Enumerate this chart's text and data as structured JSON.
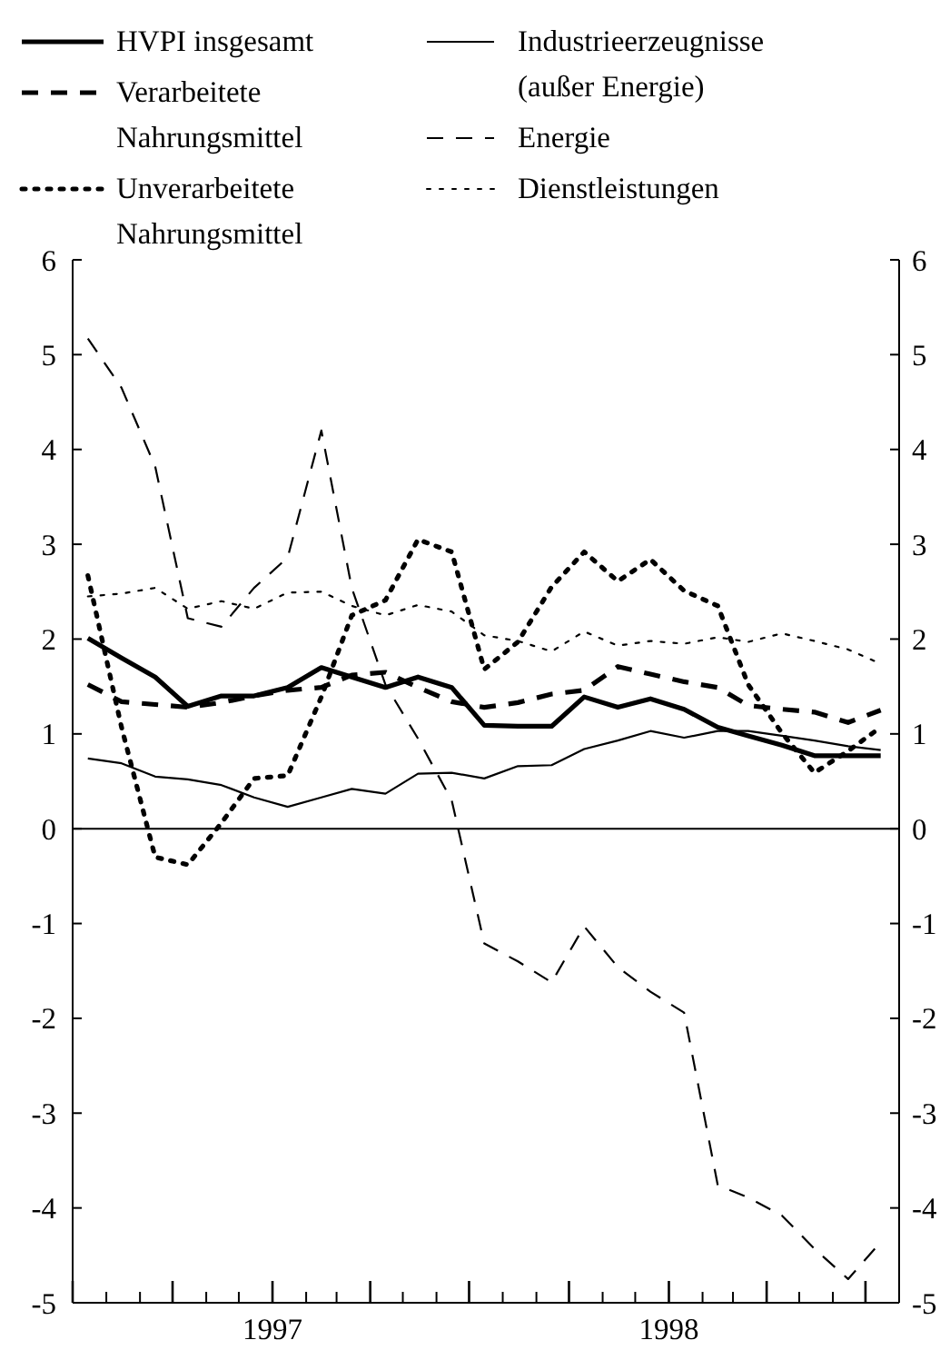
{
  "chart_data": {
    "type": "line",
    "x": [
      "1996-07-15",
      "1996-08-15",
      "1996-09-15",
      "1996-10-15",
      "1996-11-15",
      "1996-12-15",
      "1997-01-15",
      "1997-02-15",
      "1997-03-15",
      "1997-04-15",
      "1997-05-15",
      "1997-06-15",
      "1997-07-15",
      "1997-08-15",
      "1997-09-15",
      "1997-10-15",
      "1997-11-15",
      "1997-12-15",
      "1998-01-15",
      "1998-02-15",
      "1998-03-15",
      "1998-04-15",
      "1998-05-15",
      "1998-06-15",
      "1998-07-15"
    ],
    "series": [
      {
        "name": "HVPI insgesamt",
        "color": "#000000",
        "line_style": "solid",
        "values": [
          2.01,
          1.8,
          1.6,
          1.29,
          1.4,
          1.4,
          1.49,
          1.7,
          1.6,
          1.49,
          1.6,
          1.49,
          1.09,
          1.08,
          1.08,
          1.39,
          1.28,
          1.37,
          1.26,
          1.07,
          0.98,
          0.88,
          0.77,
          0.77,
          0.77
        ]
      },
      {
        "name": "Verarbeitete Nahrungsmittel",
        "color": "#000000",
        "line_style": "dashed",
        "values": [
          1.52,
          1.34,
          1.31,
          1.28,
          1.33,
          1.4,
          1.46,
          1.49,
          1.62,
          1.65,
          1.49,
          1.34,
          1.28,
          1.33,
          1.42,
          1.46,
          1.71,
          1.63,
          1.55,
          1.49,
          1.3,
          1.26,
          1.23,
          1.12,
          1.25
        ]
      },
      {
        "name": "Unverarbeitete Nahrungsmittel",
        "color": "#000000",
        "line_style": "dotted",
        "values": [
          2.67,
          1.07,
          -0.3,
          -0.38,
          0.06,
          0.53,
          0.56,
          1.39,
          2.25,
          2.41,
          3.05,
          2.92,
          1.68,
          1.97,
          2.55,
          2.92,
          2.61,
          2.84,
          2.51,
          2.35,
          1.52,
          1.01,
          0.59,
          0.82,
          1.07
        ]
      },
      {
        "name": "Industrieerzeugnisse (außer Energie)",
        "color": "#000000",
        "line_style": "solid",
        "values": [
          0.74,
          0.69,
          0.55,
          0.52,
          0.46,
          0.33,
          0.23,
          0.33,
          0.42,
          0.37,
          0.58,
          0.59,
          0.53,
          0.66,
          0.67,
          0.84,
          0.93,
          1.03,
          0.96,
          1.03,
          1.03,
          0.98,
          0.93,
          0.87,
          0.83
        ]
      },
      {
        "name": "Energie",
        "color": "#000000",
        "line_style": "dashed",
        "values": [
          5.17,
          4.65,
          3.82,
          2.22,
          2.13,
          2.54,
          2.86,
          4.2,
          2.54,
          1.52,
          0.95,
          0.3,
          -1.21,
          -1.4,
          -1.62,
          -1.03,
          -1.46,
          -1.72,
          -1.94,
          -3.76,
          -3.89,
          -4.08,
          -4.43,
          -4.75,
          -4.36
        ]
      },
      {
        "name": "Dienstleistungen",
        "color": "#000000",
        "line_style": "dotted",
        "values": [
          2.45,
          2.48,
          2.54,
          2.32,
          2.4,
          2.32,
          2.49,
          2.5,
          2.35,
          2.25,
          2.36,
          2.29,
          2.04,
          1.98,
          1.87,
          2.08,
          1.93,
          1.98,
          1.95,
          2.02,
          1.97,
          2.06,
          1.98,
          1.89,
          1.74
        ]
      }
    ],
    "xlim": [
      "1996-07-01",
      "1998-08-01"
    ],
    "xticks": [
      {
        "value": "1996-07-01",
        "label": null
      },
      {
        "value": "1996-08-01",
        "label": null
      },
      {
        "value": "1996-09-01",
        "label": null
      },
      {
        "value": "1996-10-01",
        "label": null
      },
      {
        "value": "1996-11-01",
        "label": null
      },
      {
        "value": "1996-12-01",
        "label": null
      },
      {
        "value": "1997-01-01",
        "label": "1997"
      },
      {
        "value": "1997-02-01",
        "label": null
      },
      {
        "value": "1997-03-01",
        "label": null
      },
      {
        "value": "1997-04-01",
        "label": null
      },
      {
        "value": "1997-05-01",
        "label": null
      },
      {
        "value": "1997-06-01",
        "label": null
      },
      {
        "value": "1997-07-01",
        "label": null
      },
      {
        "value": "1997-08-01",
        "label": null
      },
      {
        "value": "1997-09-01",
        "label": null
      },
      {
        "value": "1997-10-01",
        "label": null
      },
      {
        "value": "1997-11-01",
        "label": null
      },
      {
        "value": "1997-12-01",
        "label": null
      },
      {
        "value": "1998-01-01",
        "label": "1998"
      },
      {
        "value": "1998-02-01",
        "label": null
      },
      {
        "value": "1998-03-01",
        "label": null
      },
      {
        "value": "1998-04-01",
        "label": null
      },
      {
        "value": "1998-05-01",
        "label": null
      },
      {
        "value": "1998-06-01",
        "label": null
      },
      {
        "value": "1998-07-01",
        "label": null
      }
    ],
    "ylim": [
      -5,
      6
    ],
    "yticks": [
      -5,
      -4,
      -3,
      -2,
      -1,
      0,
      1,
      2,
      3,
      4,
      5,
      6
    ],
    "y2lim": [
      -5,
      6
    ],
    "y2ticks": [
      -5,
      -4,
      -3,
      -2,
      -1,
      0,
      1,
      2,
      3,
      4,
      5,
      6
    ],
    "ref_lines": [
      {
        "axis": "y",
        "value": 0
      }
    ],
    "grid": false,
    "legend": "top",
    "marker": "none"
  }
}
